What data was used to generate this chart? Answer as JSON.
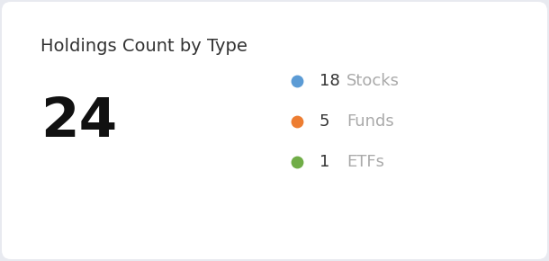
{
  "title": "Holdings Count by Type",
  "total_count": "24",
  "background_outer": "#e8eaf0",
  "background_card": "#ffffff",
  "title_color": "#333333",
  "title_fontsize": 14,
  "total_fontsize": 44,
  "total_color": "#111111",
  "items": [
    {
      "label": "Stocks",
      "count": "18",
      "color": "#5b9bd5"
    },
    {
      "label": "Funds",
      "count": "5",
      "color": "#ed7d31"
    },
    {
      "label": "ETFs",
      "count": "1",
      "color": "#70ad47"
    }
  ],
  "item_count_color": "#333333",
  "item_label_color": "#aaaaaa",
  "item_fontsize": 13,
  "dot_size": 80
}
